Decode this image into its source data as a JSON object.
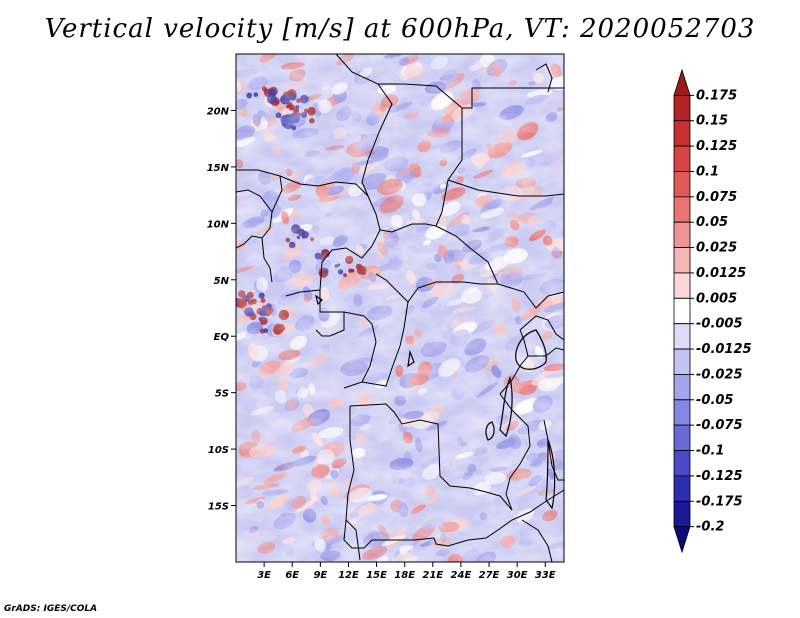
{
  "title": "Vertical velocity [m/s] at 600hPa, VT: 2020052703",
  "credit": "GrADS: IGES/COLA",
  "map": {
    "lon_range": [
      0,
      35
    ],
    "lat_range": [
      -20,
      25
    ],
    "lon_ticks": [
      "3E",
      "6E",
      "9E",
      "12E",
      "15E",
      "18E",
      "21E",
      "24E",
      "27E",
      "30E",
      "33E"
    ],
    "lon_tick_values": [
      3,
      6,
      9,
      12,
      15,
      18,
      21,
      24,
      27,
      30,
      33
    ],
    "lat_ticks": [
      "20N",
      "15N",
      "10N",
      "5N",
      "EQ",
      "5S",
      "10S",
      "15S"
    ],
    "lat_tick_values": [
      20,
      15,
      10,
      5,
      0,
      -5,
      -10,
      -15
    ],
    "field": "vertical velocity",
    "level": "600hPa",
    "valid_time": "2020052703"
  },
  "colorbar": {
    "labels": [
      "0.175",
      "0.15",
      "0.125",
      "0.1",
      "0.075",
      "0.05",
      "0.025",
      "0.0125",
      "0.005",
      "-0.005",
      "-0.0125",
      "-0.025",
      "-0.05",
      "-0.075",
      "-0.1",
      "-0.125",
      "-0.175",
      "-0.2"
    ],
    "colors": [
      "#9b1b1b",
      "#b52424",
      "#c83030",
      "#d84444",
      "#e05858",
      "#e87474",
      "#ef9494",
      "#f5b6b6",
      "#fad8d8",
      "#ffffff",
      "#dcdcf8",
      "#c2c2f4",
      "#a4a4ec",
      "#8686e2",
      "#6868d6",
      "#4a4ac6",
      "#2e2eb0",
      "#1a1a96",
      "#0c0c78"
    ]
  }
}
